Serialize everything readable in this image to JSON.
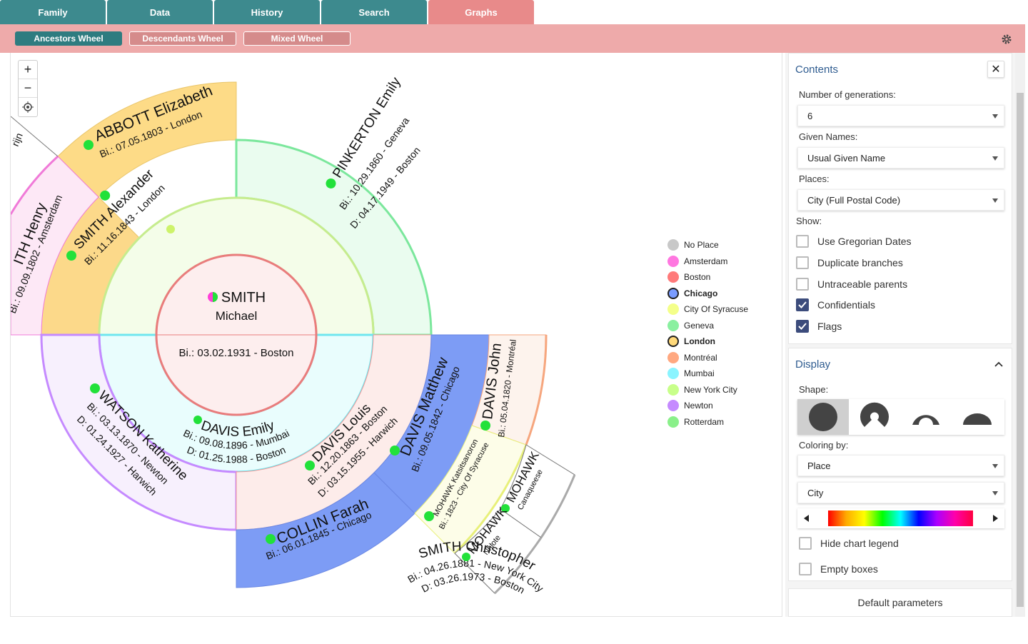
{
  "tabs": [
    "Family",
    "Data",
    "History",
    "Search",
    "Graphs"
  ],
  "subtabs": [
    "Ancestors Wheel",
    "Descendants Wheel",
    "Mixed Wheel"
  ],
  "zoom": {
    "plus": "+",
    "minus": "−"
  },
  "center": {
    "surname": "SMITH",
    "given": "Michael",
    "birth": "Bi.: 03.02.1931 - Boston"
  },
  "gen1": {
    "father": {
      "name": "SMITH Christopher",
      "birth": "Bi.: 04.26.1881 - New York City",
      "death": "D: 03.26.1973 - Boston"
    },
    "mother": {
      "name": "DAVIS Emily",
      "birth": "Bi.: 09.08.1896 - Mumbai",
      "death": "D: 01.25.1988 - Boston"
    }
  },
  "gen2": {
    "ff": {
      "name": "SMITH Alexander",
      "birth": "Bi.: 11.16.1843 - London"
    },
    "fm": {
      "name": "PINKERTON Emily",
      "birth": "Bi.: 10.29.1860 - Geneva",
      "death": "D: 04.17.1949 - Boston"
    },
    "mf": {
      "name": "DAVIS Louis",
      "birth": "Bi.: 12.20.1863 - Boston",
      "death": "D: 03.15.1955 - Harwich"
    },
    "mm": {
      "name": "WATSON Katherine",
      "birth": "Bi.: 03.13.1870 - Newton",
      "death": "D: 01.24.1927 - Harwich"
    }
  },
  "gen3": {
    "fff": {
      "name": "ITH Henry",
      "birth": "Bi.: 09.09.1802 - Amsterdam"
    },
    "ffm": {
      "name": "ABBOTT Elizabeth",
      "birth": "Bi.: 07.05.1803 - London"
    },
    "mff": {
      "name": "DAVIS Matthew",
      "birth": "Bi.: 09.05.1842 - Chicago"
    },
    "mfm": {
      "name": "COLLIN Farah",
      "birth": "Bi.: 06.01.1845 - Chicago"
    },
    "ffff_fragment": "rijn"
  },
  "gen4": {
    "john": {
      "name": "DAVIS John",
      "birth": "Bi.: 05.04.1820 - Montréal"
    },
    "mohawk1": {
      "name": "MOHAWK Katsitsanoron",
      "birth": "Bi.: 1823 - City Of Syracuse"
    },
    "mohawk2": {
      "name": "MOHAWK",
      "birth": "Canaqueese"
    },
    "mohawk3": {
      "name": "MOHAWK",
      "birth": "Nhiote"
    }
  },
  "legend": [
    {
      "label": "No Place",
      "color": "#c8c8c8",
      "bold": false
    },
    {
      "label": "Amsterdam",
      "color": "#ff77e0",
      "bold": false
    },
    {
      "label": "Boston",
      "color": "#ff7a7a",
      "bold": false
    },
    {
      "label": "Chicago",
      "color": "#7a9cff",
      "bold": true
    },
    {
      "label": "City Of Syracuse",
      "color": "#f4ff8a",
      "bold": false
    },
    {
      "label": "Geneva",
      "color": "#8af0a0",
      "bold": false
    },
    {
      "label": "London",
      "color": "#ffd97a",
      "bold": true
    },
    {
      "label": "Montréal",
      "color": "#ffa880",
      "bold": false
    },
    {
      "label": "Mumbai",
      "color": "#8af4ff",
      "bold": false
    },
    {
      "label": "New York City",
      "color": "#c8ff8a",
      "bold": false
    },
    {
      "label": "Newton",
      "color": "#c58aff",
      "bold": false
    },
    {
      "label": "Rotterdam",
      "color": "#8af08a",
      "bold": false
    }
  ],
  "panel": {
    "contents_title": "Contents",
    "close": "✕",
    "generations_label": "Number of generations:",
    "generations_value": "6",
    "given_label": "Given Names:",
    "given_value": "Usual Given Name",
    "places_label": "Places:",
    "places_value": "City (Full Postal Code)",
    "show_label": "Show:",
    "checks": [
      {
        "label": "Use Gregorian Dates",
        "checked": false
      },
      {
        "label": "Duplicate branches",
        "checked": false
      },
      {
        "label": "Untraceable parents",
        "checked": false
      },
      {
        "label": "Confidentials",
        "checked": true
      },
      {
        "label": "Flags",
        "checked": true
      }
    ],
    "display_title": "Display",
    "shape_label": "Shape:",
    "coloring_label": "Coloring by:",
    "coloring_value": "Place",
    "coloring_sub": "City",
    "hide_legend": "Hide chart legend",
    "empty_boxes": "Empty boxes",
    "default_button": "Default parameters"
  }
}
